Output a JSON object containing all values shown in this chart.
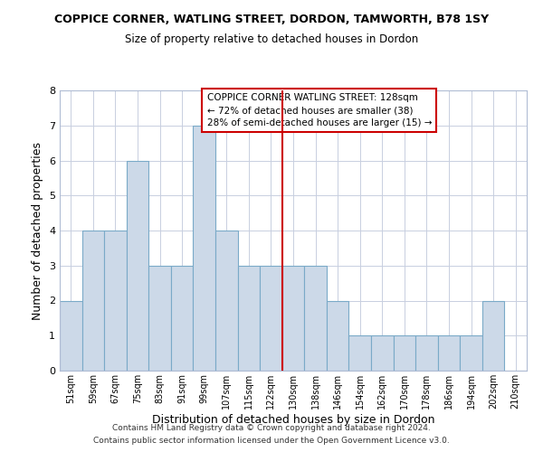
{
  "title": "COPPICE CORNER, WATLING STREET, DORDON, TAMWORTH, B78 1SY",
  "subtitle": "Size of property relative to detached houses in Dordon",
  "xlabel": "Distribution of detached houses by size in Dordon",
  "ylabel": "Number of detached properties",
  "bar_color": "#ccd9e8",
  "bar_edge_color": "#7aaac8",
  "categories": [
    "51sqm",
    "59sqm",
    "67sqm",
    "75sqm",
    "83sqm",
    "91sqm",
    "99sqm",
    "107sqm",
    "115sqm",
    "122sqm",
    "130sqm",
    "138sqm",
    "146sqm",
    "154sqm",
    "162sqm",
    "170sqm",
    "178sqm",
    "186sqm",
    "194sqm",
    "202sqm",
    "210sqm"
  ],
  "values": [
    2,
    4,
    4,
    6,
    3,
    3,
    7,
    4,
    3,
    3,
    3,
    3,
    2,
    1,
    1,
    1,
    1,
    1,
    1,
    2,
    0
  ],
  "reference_line_index": 10,
  "reference_line_color": "#cc0000",
  "ylim": [
    0,
    8
  ],
  "yticks": [
    0,
    1,
    2,
    3,
    4,
    5,
    6,
    7,
    8
  ],
  "annotation_title": "COPPICE CORNER WATLING STREET: 128sqm",
  "annotation_line1": "← 72% of detached houses are smaller (38)",
  "annotation_line2": "28% of semi-detached houses are larger (15) →",
  "footer_line1": "Contains HM Land Registry data © Crown copyright and database right 2024.",
  "footer_line2": "Contains public sector information licensed under the Open Government Licence v3.0.",
  "background_color": "#ffffff",
  "grid_color": "#c8cfe0"
}
